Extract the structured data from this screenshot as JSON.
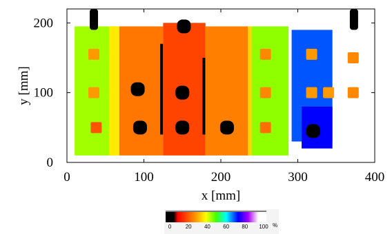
{
  "chart_data": {
    "type": "heatmap",
    "xlabel": "x [mm]",
    "ylabel": "y [mm]",
    "xlim": [
      0,
      400
    ],
    "ylim": [
      0,
      220
    ],
    "x_ticks": [
      0,
      100,
      200,
      300,
      400
    ],
    "y_ticks": [
      0,
      100,
      200
    ],
    "colorbar": {
      "range": [
        0,
        100
      ],
      "ticks": [
        0,
        20,
        40,
        60,
        80,
        100
      ],
      "unit": "%",
      "stops": [
        {
          "value": 0,
          "color": "#000000"
        },
        {
          "value": 8,
          "color": "#000000"
        },
        {
          "value": 12,
          "color": "#ff0000"
        },
        {
          "value": 30,
          "color": "#ff9900"
        },
        {
          "value": 40,
          "color": "#ffff00"
        },
        {
          "value": 50,
          "color": "#44ff00"
        },
        {
          "value": 60,
          "color": "#00ffff"
        },
        {
          "value": 72,
          "color": "#0000ff"
        },
        {
          "value": 82,
          "color": "#aa00ff"
        },
        {
          "value": 92,
          "color": "#ffffff"
        },
        {
          "value": 100,
          "color": "#ffffff"
        }
      ]
    },
    "regions": [
      {
        "name": "left-green-band",
        "x": [
          10,
          65
        ],
        "y": [
          10,
          195
        ],
        "value": 45
      },
      {
        "name": "inner-yellow-band",
        "x": [
          55,
          68
        ],
        "y": [
          10,
          195
        ],
        "value": 38
      },
      {
        "name": "center-orange",
        "x": [
          68,
          125
        ],
        "y": [
          10,
          195
        ],
        "value": 26
      },
      {
        "name": "center-red",
        "x": [
          125,
          180
        ],
        "y": [
          10,
          200
        ],
        "value": 20
      },
      {
        "name": "center-orange-2",
        "x": [
          180,
          235
        ],
        "y": [
          10,
          195
        ],
        "value": 27
      },
      {
        "name": "right-yellow-strip",
        "x": [
          235,
          240
        ],
        "y": [
          10,
          195
        ],
        "value": 36
      },
      {
        "name": "right-green-band",
        "x": [
          240,
          288
        ],
        "y": [
          10,
          195
        ],
        "value": 46
      },
      {
        "name": "blue-plate",
        "x": [
          292,
          345
        ],
        "y": [
          30,
          190
        ],
        "value": 68
      },
      {
        "name": "blue-lower",
        "x": [
          305,
          345
        ],
        "y": [
          20,
          80
        ],
        "value": 72
      }
    ],
    "spots": [
      {
        "x": 35,
        "y": 155,
        "value": 30
      },
      {
        "x": 35,
        "y": 100,
        "value": 30
      },
      {
        "x": 38,
        "y": 50,
        "value": 22
      },
      {
        "x": 92,
        "y": 105,
        "value": 3
      },
      {
        "x": 150,
        "y": 100,
        "value": 3
      },
      {
        "x": 152,
        "y": 195,
        "value": 3
      },
      {
        "x": 95,
        "y": 50,
        "value": 2
      },
      {
        "x": 150,
        "y": 50,
        "value": 3
      },
      {
        "x": 208,
        "y": 50,
        "value": 4
      },
      {
        "x": 258,
        "y": 155,
        "value": 28
      },
      {
        "x": 258,
        "y": 100,
        "value": 28
      },
      {
        "x": 258,
        "y": 50,
        "value": 25
      },
      {
        "x": 318,
        "y": 155,
        "value": 30
      },
      {
        "x": 318,
        "y": 100,
        "value": 30
      },
      {
        "x": 320,
        "y": 45,
        "value": 6
      },
      {
        "x": 340,
        "y": 100,
        "value": 30
      },
      {
        "x": 372,
        "y": 150,
        "value": 28
      },
      {
        "x": 372,
        "y": 100,
        "value": 28
      }
    ],
    "vertical_streaks": [
      {
        "x": 123,
        "y": [
          40,
          170
        ],
        "value": 2
      },
      {
        "x": 178,
        "y": [
          40,
          150
        ],
        "value": 2
      }
    ],
    "studs": [
      {
        "x": 35,
        "y": [
          190,
          220
        ],
        "value": 2
      },
      {
        "x": 373,
        "y": [
          190,
          220
        ],
        "value": 2
      }
    ]
  }
}
